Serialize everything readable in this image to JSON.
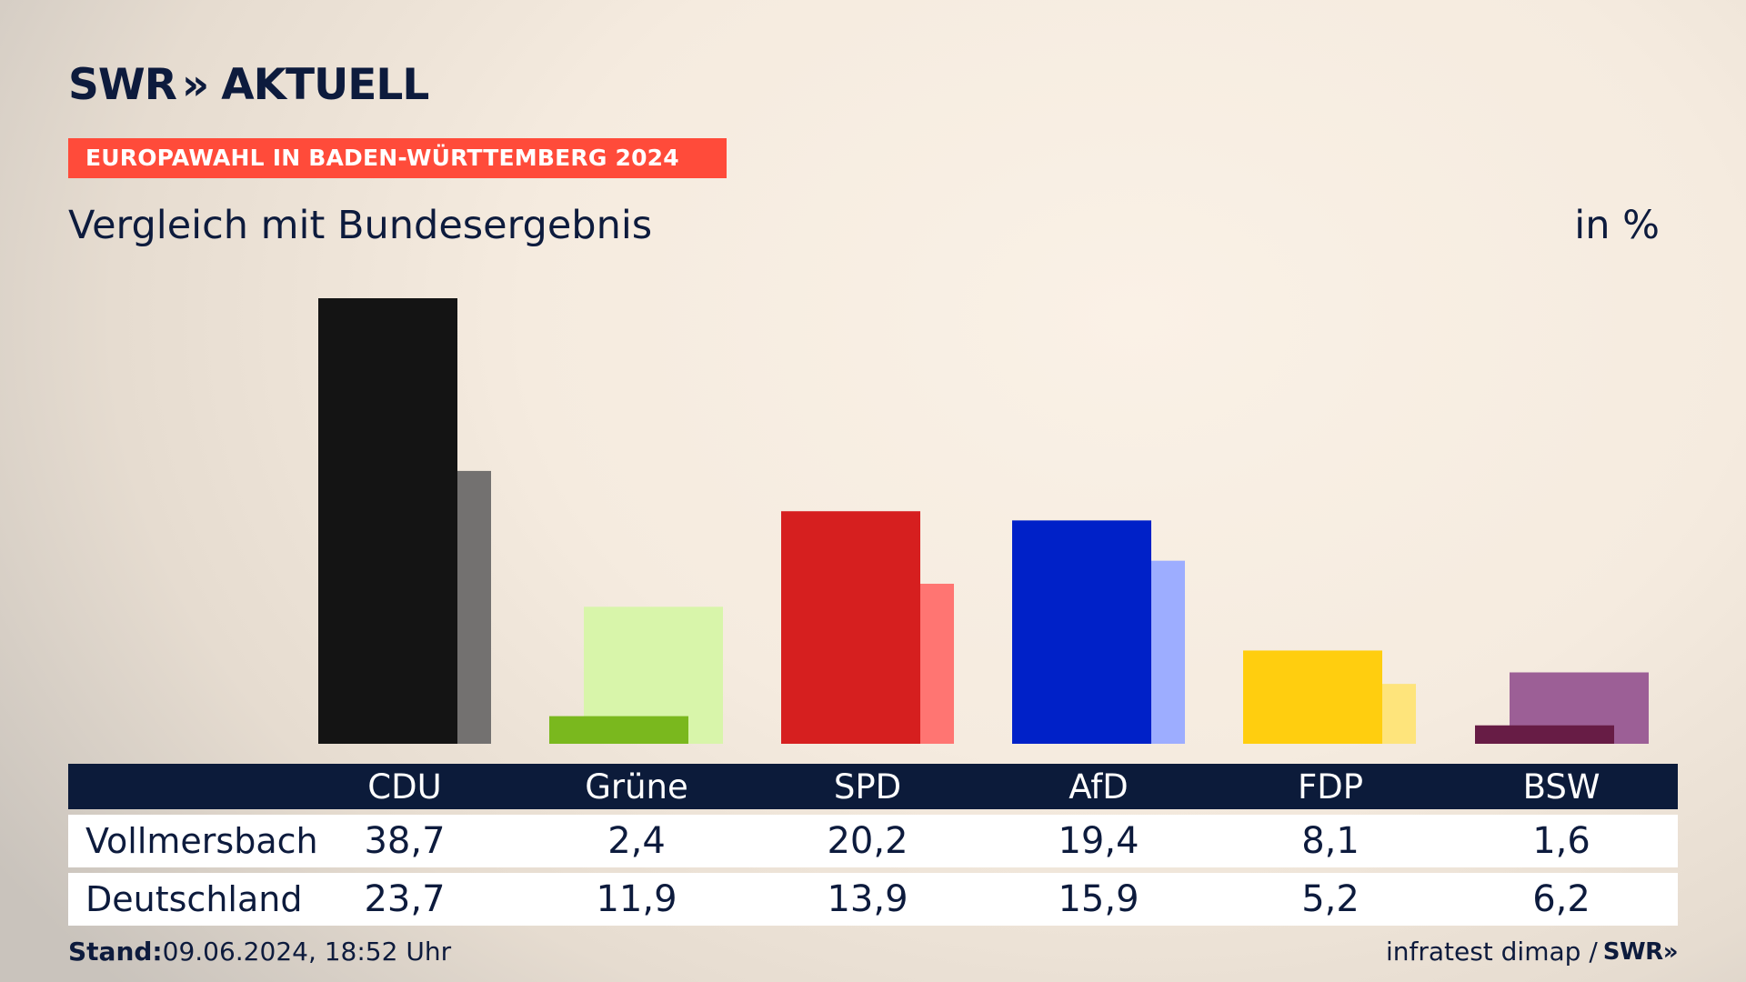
{
  "brand": {
    "logo_text": "SWR",
    "logo_suffix": "AKTUELL",
    "logo_chevron": "»"
  },
  "banner": {
    "text": "EUROPAWAHL IN BADEN-WÜRTTEMBERG 2024"
  },
  "subtitle": "Vergleich mit Bundesergebnis",
  "unit": "in %",
  "table": {
    "rows": [
      {
        "label": "Vollmersbach",
        "values": [
          "38,7",
          "2,4",
          "20,2",
          "19,4",
          "8,1",
          "1,6"
        ]
      },
      {
        "label": "Deutschland",
        "values": [
          "23,7",
          "11,9",
          "13,9",
          "15,9",
          "5,2",
          "6,2"
        ]
      }
    ]
  },
  "footer": {
    "stand_label": "Stand:",
    "stand_value": "09.06.2024, 18:52 Uhr",
    "source": "infratest dimap /",
    "source_logo": "SWR»"
  },
  "chart_data": {
    "type": "bar",
    "categories": [
      "CDU",
      "Grüne",
      "SPD",
      "AfD",
      "FDP",
      "BSW"
    ],
    "series": [
      {
        "name": "Vollmersbach",
        "values": [
          38.7,
          2.4,
          20.2,
          19.4,
          8.1,
          1.6
        ]
      },
      {
        "name": "Deutschland",
        "values": [
          23.7,
          11.9,
          13.9,
          15.9,
          5.2,
          6.2
        ]
      }
    ],
    "colors": {
      "primary": [
        "#141414",
        "#7ab81e",
        "#d61f1f",
        "#0021c8",
        "#ffce0f",
        "#671c45"
      ],
      "secondary": [
        "#737170",
        "#d8f5aa",
        "#ff7572",
        "#9dadff",
        "#fee47b",
        "#9c5f96"
      ]
    },
    "ylim": [
      0,
      38.7
    ],
    "grid": false,
    "legend": "none"
  }
}
